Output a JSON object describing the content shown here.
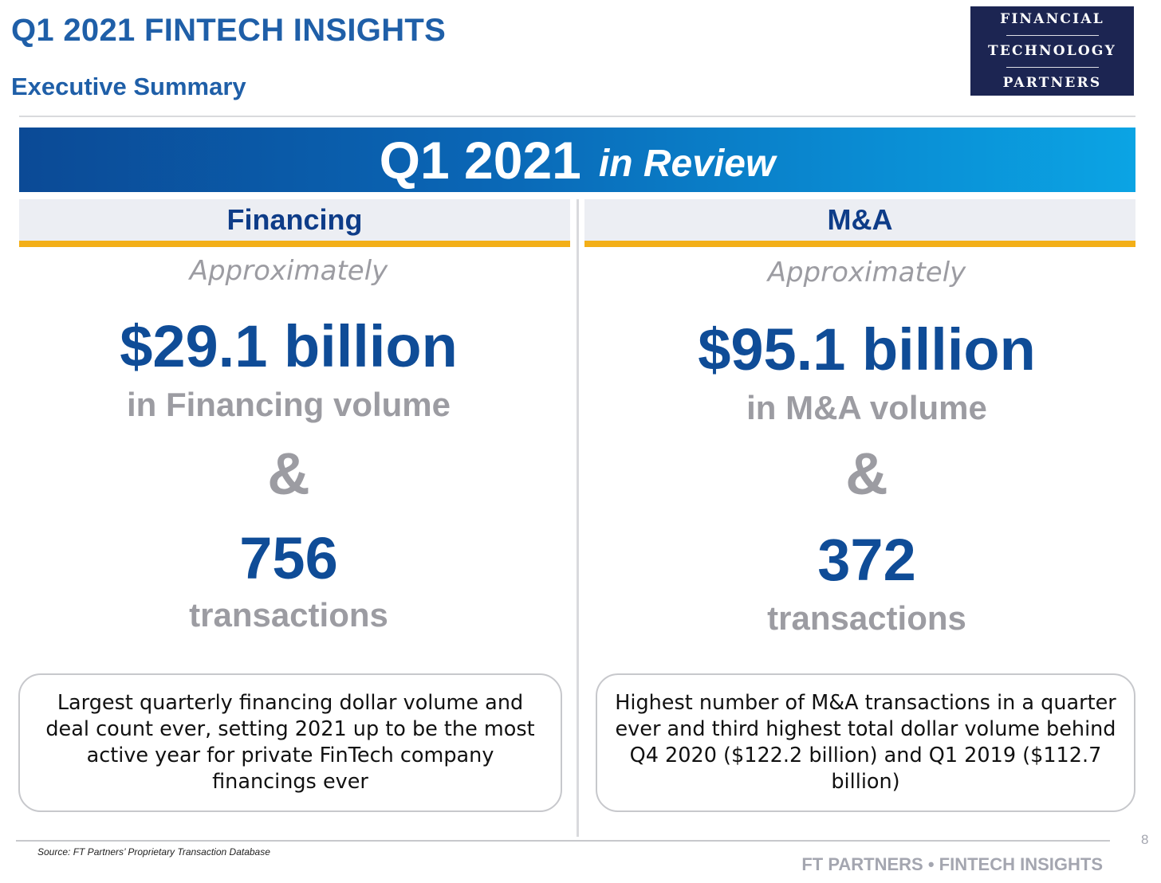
{
  "header": {
    "title": "Q1 2021 FINTECH INSIGHTS",
    "subtitle": "Executive Summary"
  },
  "logo": {
    "line1": "FINANCIAL",
    "line2": "TECHNOLOGY",
    "line3": "PARTNERS",
    "background": "#1c2552"
  },
  "banner": {
    "main": "Q1 2021",
    "suffix": "in Review"
  },
  "financing": {
    "heading": "Financing",
    "approx": "Approximately",
    "amount": "$29.1 billion",
    "volume_label": "in Financing volume",
    "ampersand": "&",
    "count": "756",
    "count_label": "transactions",
    "note": "Largest quarterly financing dollar volume and deal count ever, setting 2021 up to be the most active year for private FinTech company financings ever"
  },
  "ma": {
    "heading": "M&A",
    "approx": "Approximately",
    "amount": "$95.1 billion",
    "volume_label": "in M&A volume",
    "ampersand": "&",
    "count": "372",
    "count_label": "transactions",
    "note": "Highest number of M&A transactions in a quarter ever and third highest total dollar volume behind Q4 2020 ($122.2 billion) and Q1 2019 ($112.7 billion)"
  },
  "footer": {
    "source": "Source: FT Partners’ Proprietary Transaction Database",
    "brand": "FT PARTNERS • FINTECH INSIGHTS",
    "page_number": "8"
  },
  "colors": {
    "title_blue": "#1f5fa8",
    "value_blue": "#0f4c97",
    "accent_gold": "#f3af18",
    "muted_gray": "#9c9ca2"
  }
}
